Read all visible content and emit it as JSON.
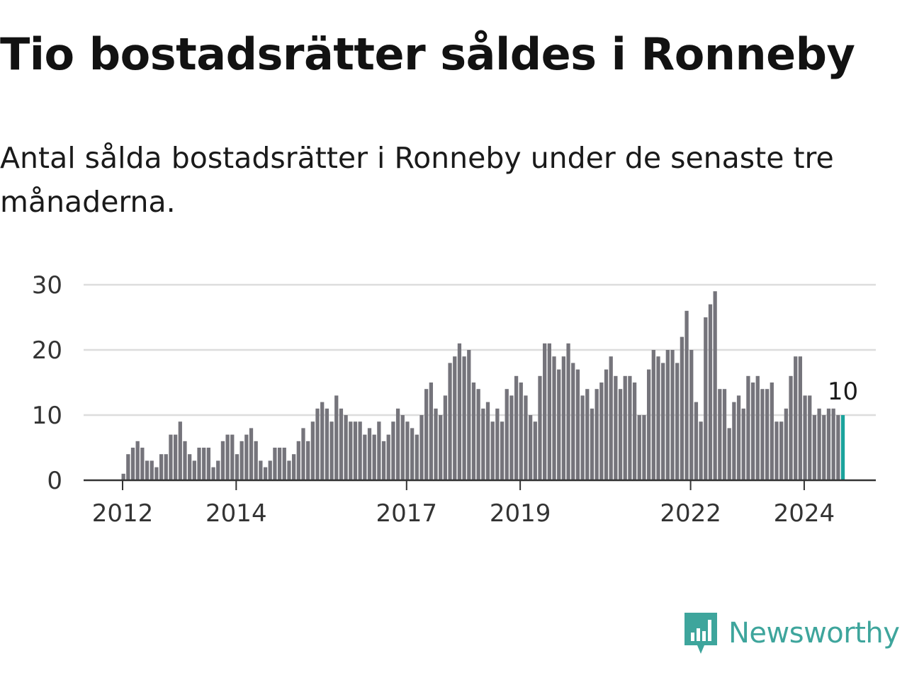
{
  "title": "Tio bostadsrätter såldes i Ronneby",
  "subtitle": "Antal sålda bostadsrätter i Ronneby under de senaste tre månaderna.",
  "brand": {
    "name": "Newsworthy",
    "color": "#3ea59c",
    "icon": "newsworthy-logo-icon"
  },
  "colors": {
    "bar": "#75747b",
    "highlight": "#1ba39c",
    "grid": "#dddddd",
    "axis": "#333333"
  },
  "chart_data": {
    "type": "bar",
    "title": "Tio bostadsrätter såldes i Ronneby",
    "subtitle": "Antal sålda bostadsrätter i Ronneby under de senaste tre månaderna.",
    "xlabel": "",
    "ylabel": "",
    "x_start": "2011-03",
    "x_end": "2024-08",
    "frequency": "monthly",
    "ylim": [
      0,
      30
    ],
    "yticks": [
      0,
      10,
      20,
      30
    ],
    "xticks": [
      "2012",
      "2014",
      "2017",
      "2019",
      "2022",
      "2024"
    ],
    "grid": true,
    "legend": "none",
    "highlight_last": true,
    "annotation": "10",
    "values": [
      0,
      0,
      0,
      0,
      0,
      0,
      0,
      0,
      0,
      0,
      1,
      4,
      5,
      6,
      5,
      3,
      3,
      2,
      4,
      4,
      7,
      7,
      9,
      6,
      4,
      3,
      5,
      5,
      5,
      2,
      3,
      6,
      7,
      7,
      4,
      6,
      7,
      8,
      6,
      3,
      2,
      3,
      5,
      5,
      5,
      3,
      4,
      6,
      8,
      6,
      9,
      11,
      12,
      11,
      9,
      13,
      11,
      10,
      9,
      9,
      9,
      7,
      8,
      7,
      9,
      6,
      7,
      9,
      11,
      10,
      9,
      8,
      7,
      10,
      14,
      15,
      11,
      10,
      13,
      18,
      19,
      21,
      19,
      20,
      15,
      14,
      11,
      12,
      9,
      11,
      9,
      14,
      13,
      16,
      15,
      13,
      10,
      9,
      16,
      21,
      21,
      19,
      17,
      19,
      21,
      18,
      17,
      13,
      14,
      11,
      14,
      15,
      17,
      19,
      16,
      14,
      16,
      16,
      15,
      10,
      10,
      17,
      20,
      19,
      18,
      20,
      20,
      18,
      22,
      26,
      20,
      12,
      9,
      25,
      27,
      29,
      14,
      14,
      8,
      12,
      13,
      11,
      16,
      15,
      16,
      14,
      14,
      15,
      9,
      9,
      11,
      16,
      19,
      19,
      13,
      13,
      10,
      11,
      10,
      11,
      11,
      10,
      10
    ]
  }
}
